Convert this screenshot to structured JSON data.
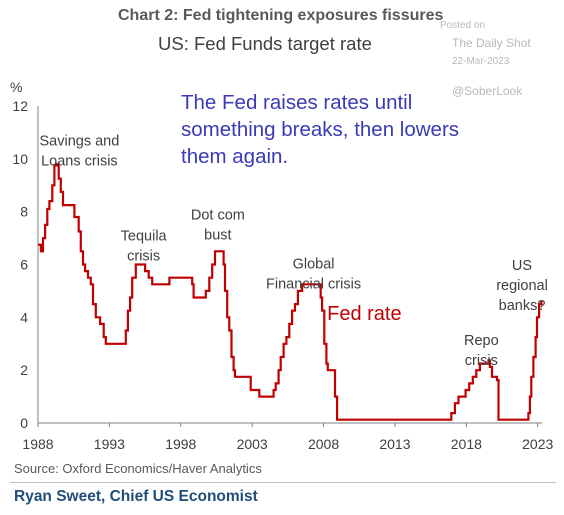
{
  "header": {
    "title": "Chart 2: Fed tightening exposures fissures",
    "subtitle": "US: Fed Funds target rate"
  },
  "watermark": {
    "posted_on": "Posted on",
    "site": "The Daily Shot",
    "date": "22-Mar-2023",
    "handle": "@SoberLook"
  },
  "annotation_main": "The Fed raises rates until something breaks, then lowers them again.",
  "footer": {
    "source": "Source: Oxford Economics/Haver Analytics",
    "byline": "Ryan Sweet, Chief US Economist"
  },
  "colors": {
    "line": "#c00000",
    "annotation": "#3a3ab8",
    "text": "#404040"
  },
  "chart_data": {
    "type": "line",
    "title": "US: Fed Funds target rate",
    "ylabel": "%",
    "xlabel": "",
    "xlim": [
      1988,
      2023.3
    ],
    "ylim": [
      0,
      12
    ],
    "x_ticks": [
      1988,
      1993,
      1998,
      2003,
      2008,
      2013,
      2018,
      2023
    ],
    "y_ticks": [
      0,
      2,
      4,
      6,
      8,
      10,
      12
    ],
    "grid": false,
    "series": [
      {
        "name": "Fed rate",
        "x": [
          1988.0,
          1988.2,
          1988.35,
          1988.5,
          1988.65,
          1988.8,
          1989.0,
          1989.15,
          1989.3,
          1989.45,
          1989.6,
          1989.75,
          1989.9,
          1990.2,
          1990.55,
          1990.85,
          1991.0,
          1991.15,
          1991.3,
          1991.5,
          1991.7,
          1991.85,
          1992.05,
          1992.35,
          1992.6,
          1992.75,
          1993.0,
          1994.0,
          1994.15,
          1994.3,
          1994.45,
          1994.6,
          1994.85,
          1995.1,
          1995.5,
          1995.75,
          1996.0,
          1997.2,
          1998.7,
          1998.8,
          1998.9,
          1999.5,
          1999.75,
          2000.0,
          2000.2,
          2000.4,
          2001.0,
          2001.1,
          2001.25,
          2001.4,
          2001.55,
          2001.7,
          2001.8,
          2001.9,
          2002.9,
          2003.5,
          2004.5,
          2004.65,
          2004.85,
          2005.0,
          2005.2,
          2005.4,
          2005.6,
          2005.8,
          2006.0,
          2006.2,
          2006.5,
          2007.7,
          2007.8,
          2007.9,
          2008.05,
          2008.2,
          2008.3,
          2008.8,
          2008.95,
          2015.95,
          2016.95,
          2017.2,
          2017.45,
          2017.95,
          2018.2,
          2018.45,
          2018.7,
          2018.95,
          2019.55,
          2019.65,
          2019.8,
          2020.15,
          2020.25,
          2022.2,
          2022.35,
          2022.45,
          2022.55,
          2022.7,
          2022.85,
          2022.95,
          2023.1,
          2023.25
        ],
        "y": [
          6.75,
          6.5,
          7.0,
          7.5,
          8.1,
          8.4,
          9.0,
          9.75,
          9.8,
          9.25,
          8.75,
          8.25,
          8.25,
          8.25,
          7.8,
          7.25,
          6.5,
          6.0,
          5.75,
          5.5,
          5.25,
          4.5,
          4.0,
          3.75,
          3.25,
          3.0,
          3.0,
          3.0,
          3.5,
          4.25,
          4.75,
          5.5,
          6.0,
          6.0,
          5.75,
          5.5,
          5.25,
          5.5,
          5.5,
          5.25,
          4.75,
          4.75,
          5.0,
          5.5,
          6.0,
          6.5,
          6.0,
          5.0,
          4.0,
          3.5,
          2.5,
          2.0,
          1.75,
          1.75,
          1.25,
          1.0,
          1.25,
          1.5,
          2.0,
          2.5,
          3.0,
          3.25,
          3.75,
          4.25,
          4.5,
          5.0,
          5.25,
          5.25,
          4.75,
          4.25,
          3.0,
          2.25,
          2.0,
          1.0,
          0.125,
          0.125,
          0.375,
          0.75,
          1.0,
          1.25,
          1.5,
          1.75,
          2.0,
          2.25,
          2.375,
          2.125,
          1.75,
          1.625,
          0.125,
          0.125,
          0.375,
          1.0,
          1.75,
          2.5,
          3.25,
          4.0,
          4.5,
          4.625
        ]
      }
    ],
    "annotations": [
      {
        "lines": [
          "Savings and",
          "Loans crisis"
        ],
        "x": 1990.9,
        "y": 10.5,
        "anchor": "middle"
      },
      {
        "lines": [
          "Tequila",
          "crisis"
        ],
        "x": 1995.4,
        "y": 6.9,
        "anchor": "middle"
      },
      {
        "lines": [
          "Dot com",
          "bust"
        ],
        "x": 2000.6,
        "y": 7.7,
        "anchor": "middle"
      },
      {
        "lines": [
          "Global",
          "Financial crisis"
        ],
        "x": 2007.3,
        "y": 5.85,
        "anchor": "middle"
      },
      {
        "lines": [
          "Repo",
          "crisis"
        ],
        "x": 2019.05,
        "y": 2.95,
        "anchor": "middle"
      },
      {
        "lines": [
          "US",
          "regional",
          "banks?"
        ],
        "x": 2021.9,
        "y": 5.8,
        "anchor": "middle"
      }
    ],
    "series_label": {
      "text": "Fed rate",
      "x": 2008.25,
      "y": 3.9
    }
  }
}
